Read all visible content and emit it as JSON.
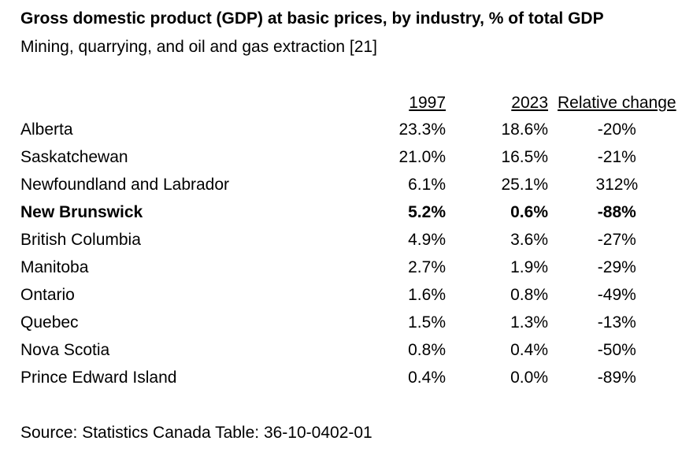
{
  "title": "Gross domestic product (GDP) at basic prices, by industry,  % of total GDP",
  "subtitle": "Mining, quarrying, and oil and gas extraction  [21]",
  "table": {
    "headers": [
      "1997",
      "2023",
      "Relative change"
    ],
    "rows": [
      {
        "province": "Alberta",
        "y1997": "23.3%",
        "y2023": "18.6%",
        "change": "-20%",
        "bold": false
      },
      {
        "province": "Saskatchewan",
        "y1997": "21.0%",
        "y2023": "16.5%",
        "change": "-21%",
        "bold": false
      },
      {
        "province": "Newfoundland and Labrador",
        "y1997": "6.1%",
        "y2023": "25.1%",
        "change": "312%",
        "bold": false
      },
      {
        "province": "New Brunswick",
        "y1997": "5.2%",
        "y2023": "0.6%",
        "change": "-88%",
        "bold": true
      },
      {
        "province": "British Columbia",
        "y1997": "4.9%",
        "y2023": "3.6%",
        "change": "-27%",
        "bold": false
      },
      {
        "province": "Manitoba",
        "y1997": "2.7%",
        "y2023": "1.9%",
        "change": "-29%",
        "bold": false
      },
      {
        "province": "Ontario",
        "y1997": "1.6%",
        "y2023": "0.8%",
        "change": "-49%",
        "bold": false
      },
      {
        "province": "Quebec",
        "y1997": "1.5%",
        "y2023": "1.3%",
        "change": "-13%",
        "bold": false
      },
      {
        "province": "Nova Scotia",
        "y1997": "0.8%",
        "y2023": "0.4%",
        "change": "-50%",
        "bold": false
      },
      {
        "province": "Prince Edward Island",
        "y1997": "0.4%",
        "y2023": "0.0%",
        "change": "-89%",
        "bold": false
      }
    ]
  },
  "source": "Source: Statistics Canada Table: 36-10-0402-01"
}
